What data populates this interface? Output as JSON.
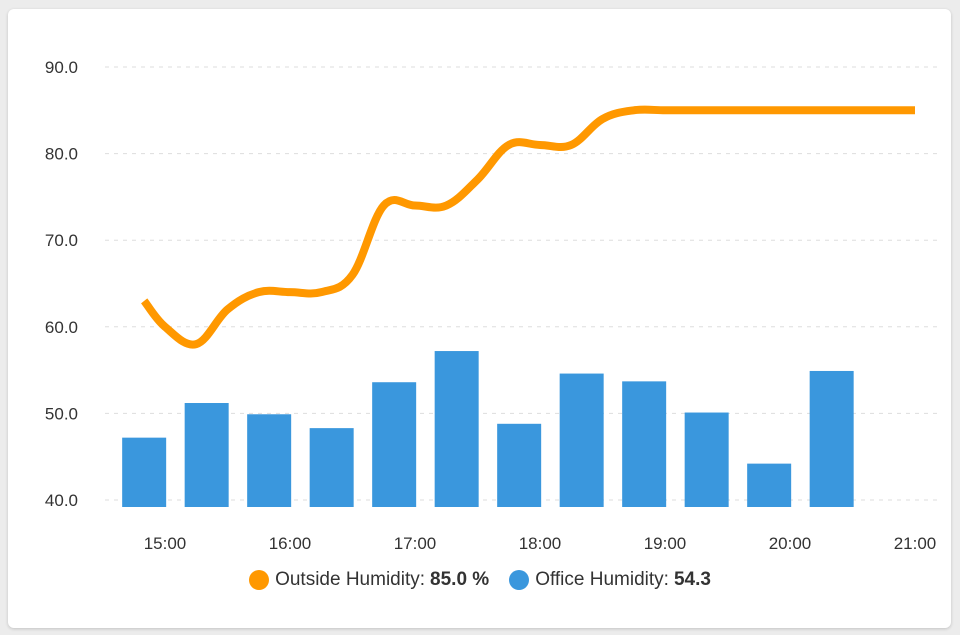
{
  "colors": {
    "outside": "#FF9800",
    "office": "#3A97DD",
    "grid": "#dddddd"
  },
  "legend": {
    "outside_label": "Outside Humidity:",
    "outside_value": "85.0 %",
    "office_label": "Office Humidity:",
    "office_value": "54.3"
  },
  "chart_data": {
    "type": "bar",
    "title": "",
    "xlabel": "",
    "ylabel": "",
    "ylim": [
      40,
      90
    ],
    "yticks": [
      "90.0",
      "80.0",
      "70.0",
      "60.0",
      "50.0",
      "40.0"
    ],
    "xticks": [
      "15:00",
      "16:00",
      "17:00",
      "18:00",
      "19:00",
      "20:00",
      "21:00"
    ],
    "grid": true,
    "legend_position": "bottom",
    "series": [
      {
        "name": "Office Humidity",
        "type": "bar",
        "x": [
          "14:50",
          "15:20",
          "15:50",
          "16:20",
          "16:50",
          "17:20",
          "17:50",
          "18:20",
          "18:50",
          "19:20",
          "19:50",
          "20:20"
        ],
        "values": [
          47.2,
          51.2,
          49.9,
          48.3,
          53.6,
          57.2,
          48.8,
          54.6,
          53.7,
          50.1,
          44.2,
          54.9
        ]
      },
      {
        "name": "Outside Humidity",
        "type": "line",
        "x": [
          "14:50",
          "15:00",
          "15:15",
          "15:30",
          "15:45",
          "16:00",
          "16:15",
          "16:30",
          "16:45",
          "17:00",
          "17:15",
          "17:30",
          "17:45",
          "18:00",
          "18:15",
          "18:30",
          "18:45",
          "19:00",
          "19:15",
          "19:30",
          "19:45",
          "20:00",
          "20:15",
          "20:30",
          "20:45",
          "21:00"
        ],
        "values": [
          63,
          60,
          58,
          62,
          64,
          64,
          64,
          66,
          74,
          74,
          74,
          77,
          81,
          81,
          81,
          84,
          85,
          85,
          85,
          85,
          85,
          85,
          85,
          85,
          85,
          85
        ]
      }
    ]
  }
}
